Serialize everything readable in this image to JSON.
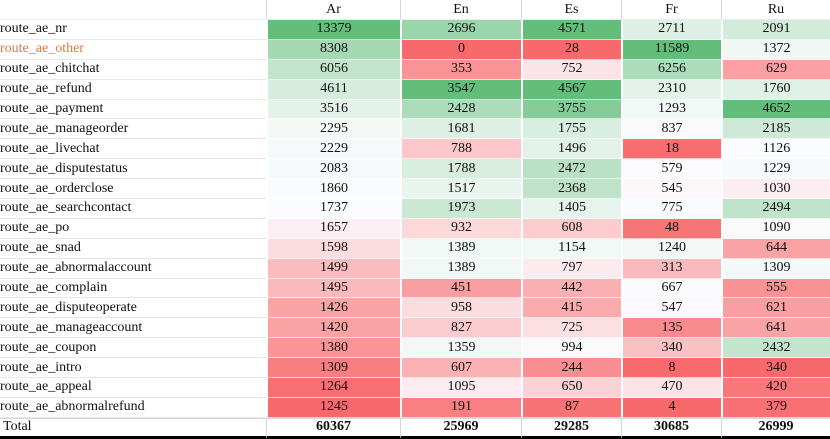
{
  "chart_data": {
    "type": "heatmap",
    "columns": [
      "Ar",
      "En",
      "Es",
      "Fr",
      "Ru"
    ],
    "rows": [
      {
        "label": "route_ae_nr",
        "values": [
          13379,
          2696,
          4571,
          2711,
          2091
        ]
      },
      {
        "label": "route_ae_other",
        "values": [
          8308,
          0,
          28,
          11589,
          1372
        ],
        "highlight": true
      },
      {
        "label": "route_ae_chitchat",
        "values": [
          6056,
          353,
          752,
          6256,
          629
        ]
      },
      {
        "label": "route_ae_refund",
        "values": [
          4611,
          3547,
          4567,
          2310,
          1760
        ]
      },
      {
        "label": "route_ae_payment",
        "values": [
          3516,
          2428,
          3755,
          1293,
          4652
        ]
      },
      {
        "label": "route_ae_manageorder",
        "values": [
          2295,
          1681,
          1755,
          837,
          2185
        ]
      },
      {
        "label": "route_ae_livechat",
        "values": [
          2229,
          788,
          1496,
          18,
          1126
        ]
      },
      {
        "label": "route_ae_disputestatus",
        "values": [
          2083,
          1788,
          2472,
          579,
          1229
        ]
      },
      {
        "label": "route_ae_orderclose",
        "values": [
          1860,
          1517,
          2368,
          545,
          1030
        ]
      },
      {
        "label": "route_ae_searchcontact",
        "values": [
          1737,
          1973,
          1405,
          775,
          2494
        ]
      },
      {
        "label": "route_ae_po",
        "values": [
          1657,
          932,
          608,
          48,
          1090
        ]
      },
      {
        "label": "route_ae_snad",
        "values": [
          1598,
          1389,
          1154,
          1240,
          644
        ]
      },
      {
        "label": "route_ae_abnormalaccount",
        "values": [
          1499,
          1389,
          797,
          313,
          1309
        ]
      },
      {
        "label": "route_ae_complain",
        "values": [
          1495,
          451,
          442,
          667,
          555
        ]
      },
      {
        "label": "route_ae_disputeoperate",
        "values": [
          1426,
          958,
          415,
          547,
          621
        ]
      },
      {
        "label": "route_ae_manageaccount",
        "values": [
          1420,
          827,
          725,
          135,
          641
        ]
      },
      {
        "label": "route_ae_coupon",
        "values": [
          1380,
          1359,
          994,
          340,
          2432
        ]
      },
      {
        "label": "route_ae_intro",
        "values": [
          1309,
          607,
          244,
          8,
          340
        ]
      },
      {
        "label": "route_ae_appeal",
        "values": [
          1264,
          1095,
          650,
          470,
          420
        ]
      },
      {
        "label": "route_ae_abnormalrefund",
        "values": [
          1245,
          191,
          87,
          4,
          379
        ]
      }
    ],
    "total": {
      "label": "Total",
      "values": [
        60367,
        25969,
        29285,
        30685,
        26999
      ]
    },
    "layout_hints": {
      "color_scale_midpoint": "per-column median",
      "grid": "off",
      "legend": "none"
    }
  },
  "colors": {
    "scale_min_red": "#F8696B",
    "scale_mid_white": "#FCFCFF",
    "scale_max_green": "#63BE7B",
    "highlight_label_orange": "#E0783C",
    "total_border_black": "#000000"
  }
}
